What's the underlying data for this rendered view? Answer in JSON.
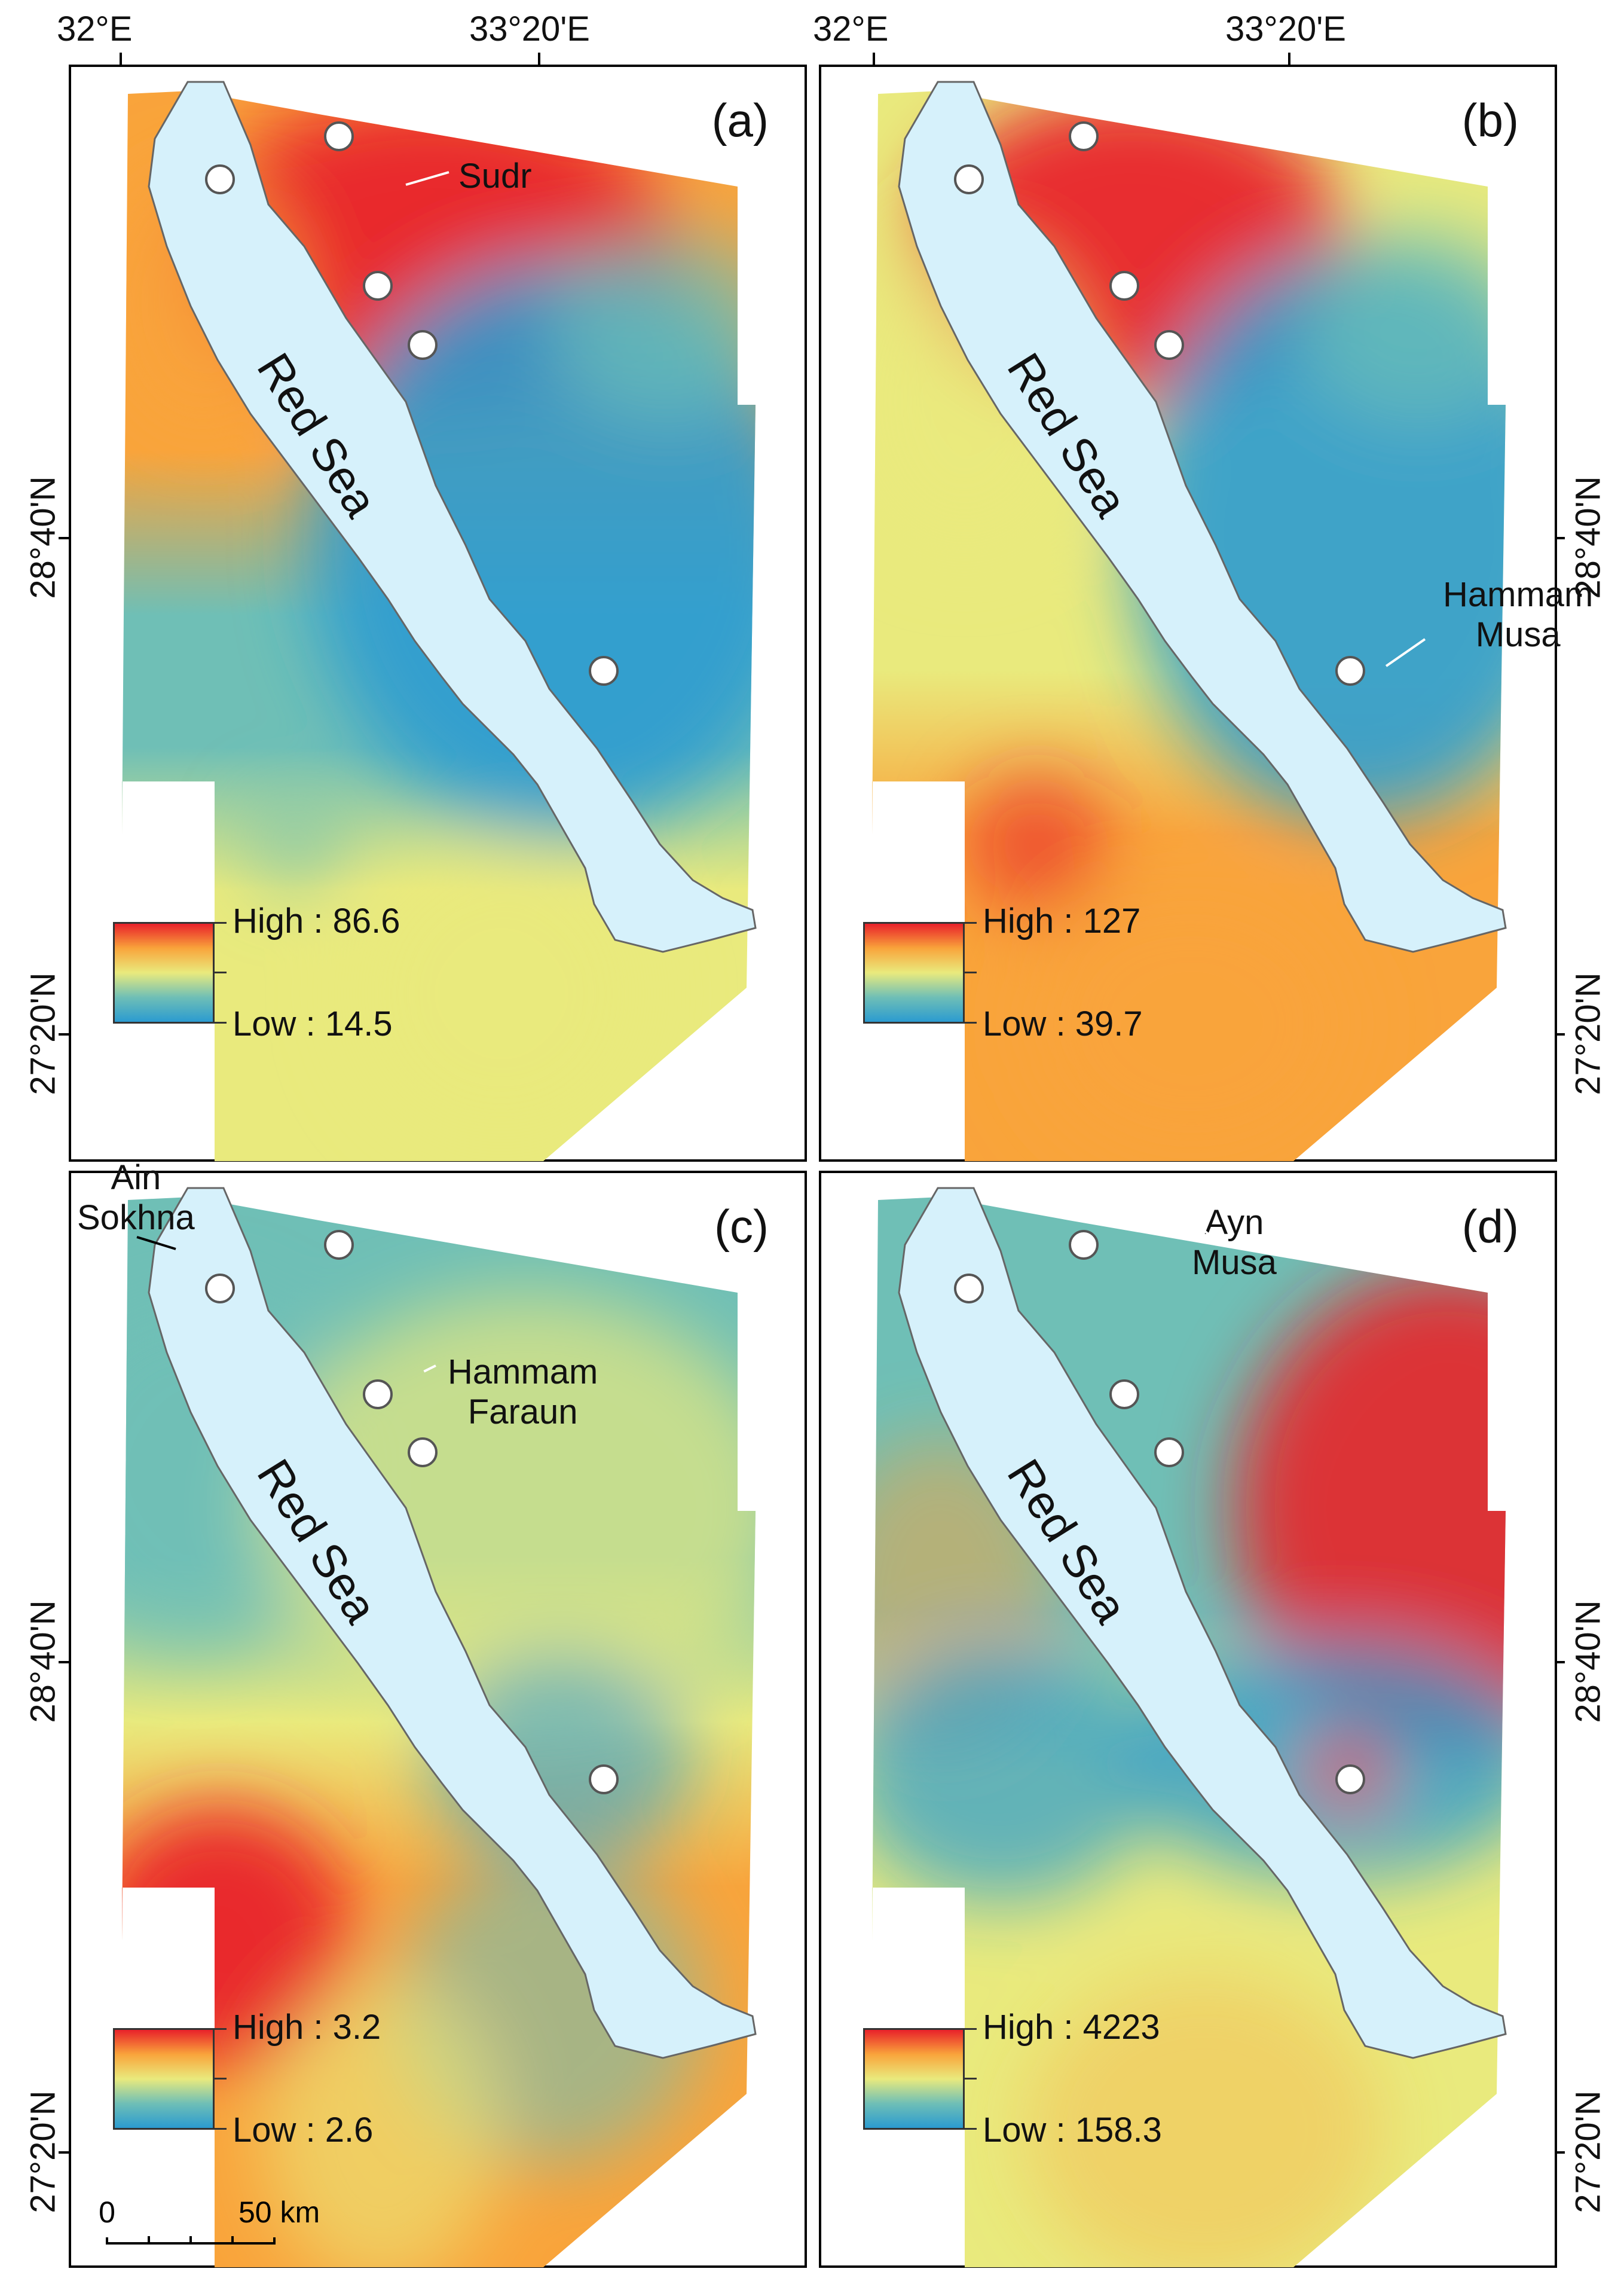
{
  "graticule": {
    "top_labels": [
      "32°E",
      "33°20'E",
      "32°E",
      "33°20'E"
    ],
    "left_labels": [
      "28°40'N",
      "27°20'N",
      "28°40'N",
      "27°20'N"
    ],
    "right_labels": [
      "28°40'N",
      "27°20'N",
      "28°40'N",
      "27°20'N"
    ]
  },
  "colors": {
    "ramp": [
      "#2b9bd0",
      "#6fbfb6",
      "#e9ea7d",
      "#f9a43b",
      "#e8212a"
    ],
    "sea": "#d6f1fb",
    "coast": "#666666",
    "site_fill": "#ffffff"
  },
  "panels": [
    {
      "id": "a",
      "label": "(a)",
      "sea_label": "Red Sea",
      "legend": {
        "high": "High : 86.6",
        "low": "Low : 14.5"
      },
      "site_labels": [
        {
          "text": "Sudr"
        }
      ]
    },
    {
      "id": "b",
      "label": "(b)",
      "sea_label": "Red Sea",
      "legend": {
        "high": "High : 127",
        "low": "Low : 39.7"
      },
      "site_labels": [
        {
          "text": "Hammam\nMusa"
        }
      ]
    },
    {
      "id": "c",
      "label": "(c)",
      "sea_label": "Red Sea",
      "legend": {
        "high": "High : 3.2",
        "low": "Low : 2.6"
      },
      "site_labels": [
        {
          "text": "Ain\nSokhna"
        },
        {
          "text": "Hammam\nFaraun"
        }
      ],
      "scale": {
        "zero": "0",
        "end": "50 km"
      }
    },
    {
      "id": "d",
      "label": "(d)",
      "sea_label": "Red Sea",
      "legend": {
        "high": "High : 4223",
        "low": "Low : 158.3"
      },
      "site_labels": [
        {
          "text": "Ayn\nMusa"
        }
      ]
    }
  ]
}
